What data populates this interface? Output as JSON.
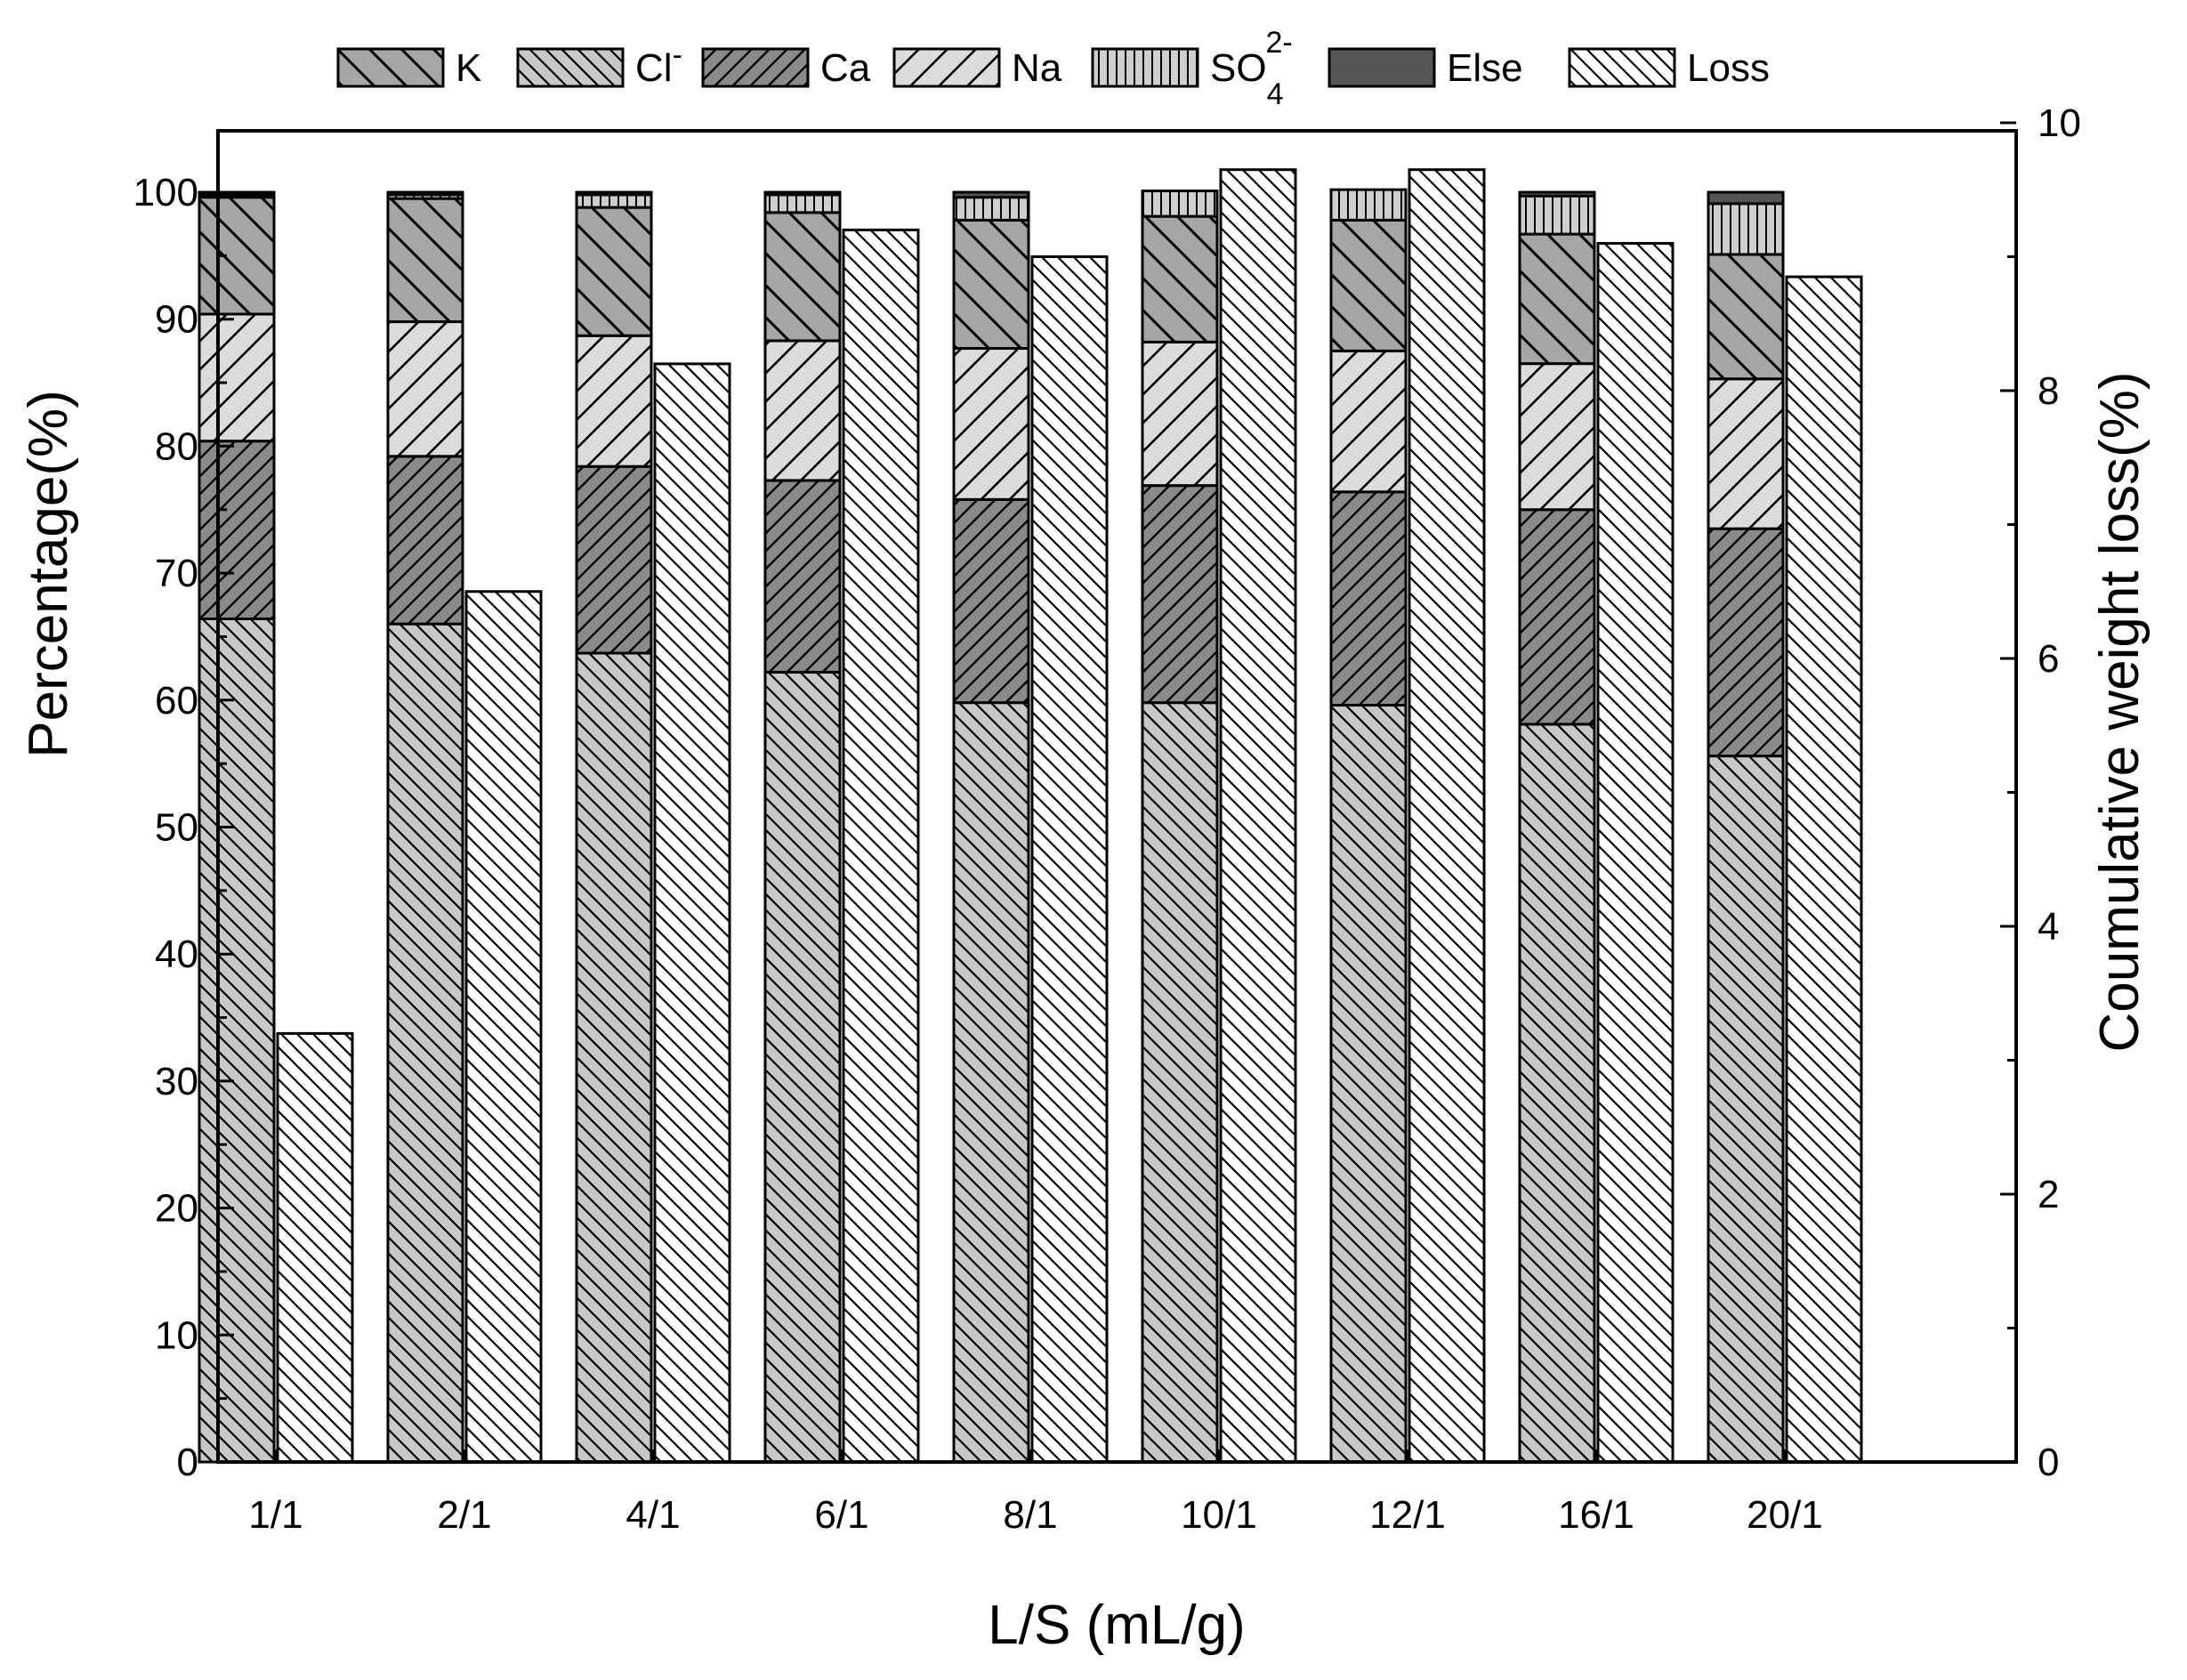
{
  "chart_data": {
    "type": "bar",
    "xlabel": "L/S (mL/g)",
    "ylabel": "Percentage(%)",
    "ylabel_right": "Coumulative weight loss(%)",
    "ylim": [
      0,
      105
    ],
    "ylim_right": [
      0,
      10
    ],
    "yticks": [
      "0",
      "10",
      "20",
      "30",
      "40",
      "50",
      "60",
      "70",
      "80",
      "90",
      "100"
    ],
    "yticks_right": [
      "0",
      "2",
      "4",
      "6",
      "8",
      "10"
    ],
    "categories": [
      "1/1",
      "2/1",
      "4/1",
      "6/1",
      "8/1",
      "10/1",
      "12/1",
      "16/1",
      "20/1"
    ],
    "stack_order": [
      "Cl",
      "Ca",
      "Na",
      "K",
      "SO4",
      "Else"
    ],
    "series": [
      {
        "name": "K",
        "legend_label": "K",
        "axis": "left",
        "stacked": true,
        "fill": "#a6a6a6",
        "pattern": "back-diag",
        "values": [
          9.2,
          9.7,
          10.1,
          10.1,
          10.1,
          9.9,
          10.3,
          10.2,
          9.8
        ]
      },
      {
        "name": "Cl",
        "legend_label": "Cl",
        "legend_sup": "-",
        "axis": "left",
        "stacked": true,
        "fill": "#c8c8c8",
        "pattern": "back-diag-dense",
        "values": [
          66.4,
          66.0,
          63.7,
          62.2,
          59.8,
          59.8,
          59.6,
          58.1,
          55.6
        ]
      },
      {
        "name": "Ca",
        "legend_label": "Ca",
        "axis": "left",
        "stacked": true,
        "fill": "#8a8a8a",
        "pattern": "fwd-diag-dense",
        "values": [
          14.0,
          13.2,
          14.7,
          15.1,
          16.0,
          17.1,
          16.8,
          16.9,
          17.9
        ]
      },
      {
        "name": "Na",
        "legend_label": "Na",
        "axis": "left",
        "stacked": true,
        "fill": "#dcdcdc",
        "pattern": "fwd-diag",
        "values": [
          10.0,
          10.6,
          10.3,
          11.0,
          11.9,
          11.3,
          11.1,
          11.5,
          11.8
        ]
      },
      {
        "name": "SO4",
        "legend_label": "SO",
        "legend_sub": "4",
        "legend_sup": "2-",
        "axis": "left",
        "stacked": true,
        "fill": "#cfcfcf",
        "pattern": "vertical",
        "values": [
          0.2,
          0.3,
          1.0,
          1.4,
          1.8,
          2.0,
          2.4,
          3.0,
          4.0
        ]
      },
      {
        "name": "Else",
        "legend_label": "Else",
        "axis": "left",
        "stacked": true,
        "fill": "#555555",
        "pattern": "solid",
        "values": [
          0.2,
          0.2,
          0.2,
          0.2,
          0.4,
          0.0,
          -0.2,
          0.3,
          0.9
        ]
      },
      {
        "name": "Loss",
        "legend_label": "Loss",
        "axis": "right",
        "stacked": false,
        "fill": "#ffffff",
        "pattern": "back-diag-dense",
        "values": [
          3.2,
          6.5,
          8.2,
          9.2,
          9.0,
          9.65,
          9.65,
          9.1,
          8.85
        ]
      }
    ],
    "legend_position": "top",
    "grid": false
  }
}
